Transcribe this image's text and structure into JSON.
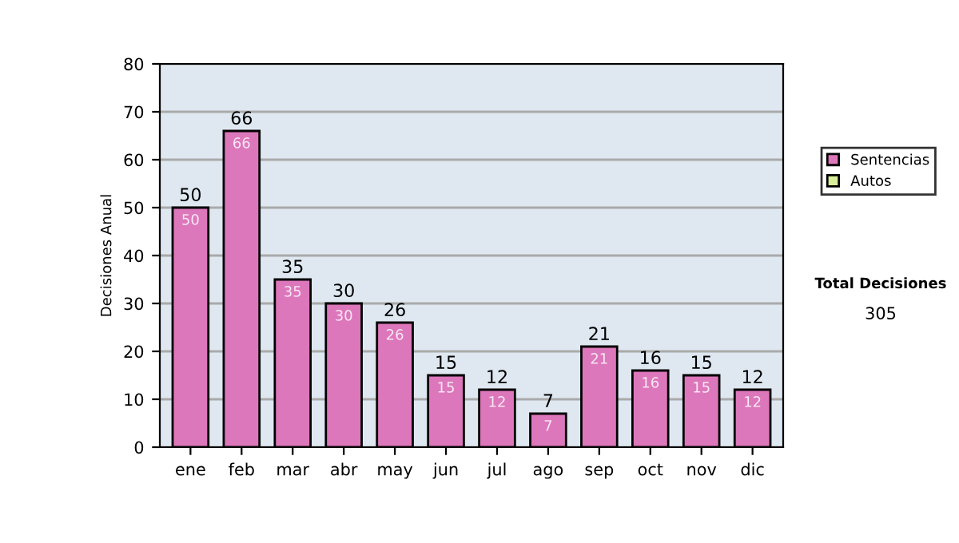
{
  "chart_data": {
    "type": "bar",
    "ylabel": "Decisiones Anual",
    "categories": [
      "ene",
      "feb",
      "mar",
      "abr",
      "may",
      "jun",
      "jul",
      "ago",
      "sep",
      "oct",
      "nov",
      "dic"
    ],
    "series": [
      {
        "name": "Sentencias",
        "color": "#dd77bb",
        "values": [
          50,
          66,
          35,
          30,
          26,
          15,
          12,
          7,
          21,
          16,
          15,
          12
        ],
        "value_labels": [
          "50",
          "66",
          "35",
          "30",
          "26",
          "15",
          "12",
          "7",
          "21",
          "16",
          "15",
          "12"
        ]
      },
      {
        "name": "Autos",
        "color": "#d9ee99",
        "values": [
          null,
          null,
          null,
          null,
          null,
          null,
          null,
          null,
          null,
          null,
          null,
          null
        ]
      }
    ],
    "totals": [
      "50",
      "66",
      "35",
      "30",
      "26",
      "15",
      "12",
      "7",
      "21",
      "16",
      "15",
      "12"
    ],
    "ylim": [
      0,
      80
    ],
    "yticks": [
      0,
      10,
      20,
      30,
      40,
      50,
      60,
      70,
      80
    ],
    "grid": "y",
    "legend": "right",
    "annotations": [
      "Total Decisiones",
      "305"
    ]
  }
}
